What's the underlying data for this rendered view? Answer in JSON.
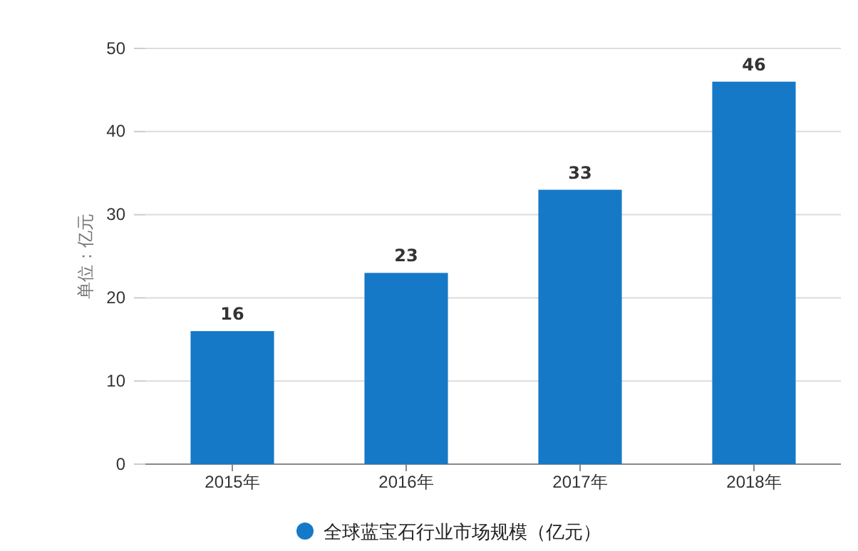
{
  "chart_data": {
    "type": "bar",
    "ylabel": "单位：亿元",
    "categories": [
      "2015年",
      "2016年",
      "2017年",
      "2018年"
    ],
    "series": [
      {
        "name": "全球蓝宝石行业市场规模（亿元）",
        "color": "#1679c7",
        "values": [
          16,
          23,
          33,
          46
        ]
      }
    ],
    "ylim": [
      0,
      50
    ],
    "yticks": [
      0,
      10,
      20,
      30,
      40,
      50
    ],
    "grid": "y",
    "legend": "bottom",
    "data_labels": true
  }
}
